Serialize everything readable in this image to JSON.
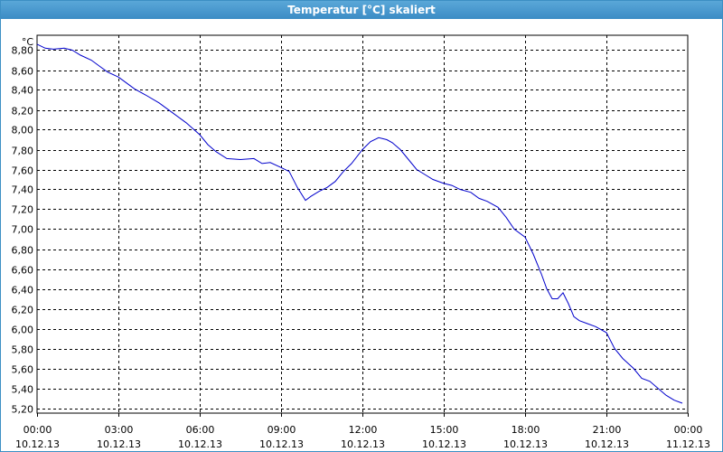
{
  "window": {
    "title": "Temperatur [°C] skaliert"
  },
  "colors": {
    "titlebar": "#3b8cc5",
    "line": "#0000cc",
    "grid": "#000000"
  },
  "chart_data": {
    "type": "line",
    "title": "Temperatur [°C] skaliert",
    "ylabel": "°C",
    "xlabel": "",
    "ylim": [
      5.15,
      8.95
    ],
    "xlim": [
      0,
      24
    ],
    "grid": true,
    "y_ticks": [
      "8,80",
      "8,60",
      "8,40",
      "8,20",
      "8,00",
      "7,80",
      "7,60",
      "7,40",
      "7,20",
      "7,00",
      "6,80",
      "6,60",
      "6,40",
      "6,20",
      "6,00",
      "5,80",
      "5,60",
      "5,40",
      "5,20"
    ],
    "y_tick_values": [
      8.8,
      8.6,
      8.4,
      8.2,
      8.0,
      7.8,
      7.6,
      7.4,
      7.2,
      7.0,
      6.8,
      6.6,
      6.4,
      6.2,
      6.0,
      5.8,
      5.6,
      5.4,
      5.2
    ],
    "x_ticks": [
      {
        "time": "00:00",
        "date": "10.12.13"
      },
      {
        "time": "03:00",
        "date": "10.12.13"
      },
      {
        "time": "06:00",
        "date": "10.12.13"
      },
      {
        "time": "09:00",
        "date": "10.12.13"
      },
      {
        "time": "12:00",
        "date": "10.12.13"
      },
      {
        "time": "15:00",
        "date": "10.12.13"
      },
      {
        "time": "18:00",
        "date": "10.12.13"
      },
      {
        "time": "21:00",
        "date": "10.12.13"
      },
      {
        "time": "00:00",
        "date": "11.12.13"
      }
    ],
    "x_tick_hours": [
      0,
      3,
      6,
      9,
      12,
      15,
      18,
      21,
      24
    ],
    "series": [
      {
        "x": [
          0,
          0.3,
          0.6,
          1.0,
          1.3,
          1.6,
          2.0,
          2.3,
          2.6,
          3.0,
          3.3,
          3.6,
          4.0,
          4.5,
          5.0,
          5.5,
          6.0,
          6.3,
          6.6,
          7.0,
          7.5,
          8.0,
          8.3,
          8.6,
          9.0,
          9.3,
          9.6,
          9.9,
          10.1,
          10.4,
          10.7,
          11.0,
          11.3,
          11.6,
          12.0,
          12.3,
          12.6,
          12.9,
          13.1,
          13.4,
          13.7,
          14.0,
          14.3,
          14.6,
          15.0,
          15.3,
          15.6,
          16.0,
          16.3,
          16.6,
          17.0,
          17.3,
          17.6,
          18.0,
          18.3,
          18.6,
          18.8,
          19.0,
          19.2,
          19.4,
          19.6,
          19.8,
          20.0,
          20.3,
          20.6,
          21.0,
          21.3,
          21.6,
          22.0,
          22.3,
          22.6,
          22.9,
          23.2,
          23.5,
          23.8
        ],
        "y": [
          8.86,
          8.82,
          8.81,
          8.82,
          8.8,
          8.75,
          8.7,
          8.64,
          8.58,
          8.53,
          8.47,
          8.41,
          8.35,
          8.27,
          8.17,
          8.07,
          7.95,
          7.85,
          7.78,
          7.71,
          7.7,
          7.71,
          7.66,
          7.67,
          7.62,
          7.58,
          7.42,
          7.29,
          7.33,
          7.38,
          7.42,
          7.48,
          7.58,
          7.66,
          7.8,
          7.88,
          7.92,
          7.9,
          7.87,
          7.8,
          7.7,
          7.6,
          7.55,
          7.5,
          7.46,
          7.44,
          7.4,
          7.37,
          7.31,
          7.28,
          7.22,
          7.12,
          7.0,
          6.92,
          6.75,
          6.55,
          6.4,
          6.3,
          6.3,
          6.36,
          6.25,
          6.12,
          6.08,
          6.05,
          6.02,
          5.96,
          5.8,
          5.7,
          5.6,
          5.5,
          5.47,
          5.4,
          5.33,
          5.28,
          5.25
        ]
      }
    ]
  }
}
